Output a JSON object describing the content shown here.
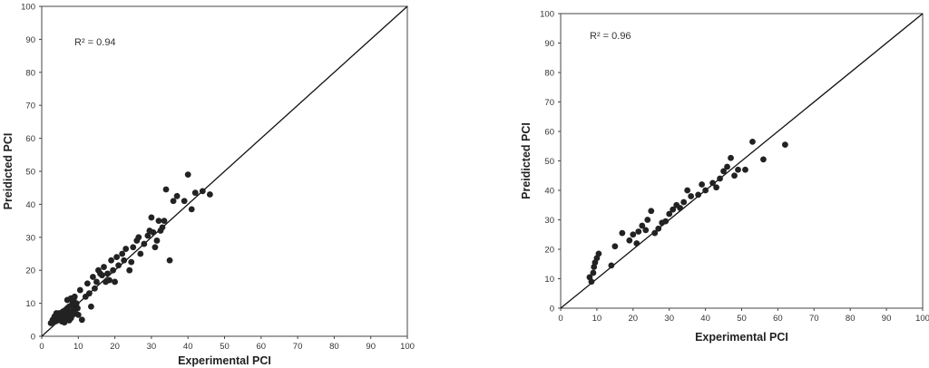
{
  "chart_data": [
    {
      "type": "scatter",
      "title": "",
      "xlabel": "Experimental PCI",
      "ylabel": "Preidicted PCI",
      "xlim": [
        0,
        100
      ],
      "ylim": [
        0,
        100
      ],
      "xticks": [
        0,
        10,
        20,
        30,
        40,
        50,
        60,
        70,
        80,
        90,
        100
      ],
      "yticks": [
        0,
        10,
        20,
        30,
        40,
        50,
        60,
        70,
        80,
        90,
        100
      ],
      "annotation": "R² = 0.94",
      "reference_line": "y = x",
      "grid": false,
      "marker_color": "#222222",
      "series": [
        {
          "points": [
            [
              2.5,
              4
            ],
            [
              3,
              5
            ],
            [
              3.2,
              4.5
            ],
            [
              3.5,
              6
            ],
            [
              3.8,
              5.2
            ],
            [
              4,
              4.6
            ],
            [
              4.2,
              6.5
            ],
            [
              4.5,
              5.5
            ],
            [
              4.8,
              7
            ],
            [
              5,
              5
            ],
            [
              5.2,
              6.2
            ],
            [
              5.5,
              4.5
            ],
            [
              5.8,
              7.5
            ],
            [
              6,
              5.8
            ],
            [
              6.2,
              4.2
            ],
            [
              6.5,
              6.8
            ],
            [
              6.8,
              5.2
            ],
            [
              7,
              8.5
            ],
            [
              7.2,
              6
            ],
            [
              7.5,
              4.8
            ],
            [
              7.8,
              7.2
            ],
            [
              8,
              5.5
            ],
            [
              8.2,
              9.5
            ],
            [
              8.5,
              6.5
            ],
            [
              8.8,
              11.5
            ],
            [
              9,
              8
            ],
            [
              9.2,
              7
            ],
            [
              9.5,
              10
            ],
            [
              9.8,
              8.5
            ],
            [
              10,
              6.5
            ],
            [
              6.5,
              8
            ],
            [
              7,
              11
            ],
            [
              8,
              11.5
            ],
            [
              9,
              12
            ],
            [
              5,
              6.5
            ],
            [
              4,
              7
            ],
            [
              7.5,
              9
            ],
            [
              8.5,
              10.5
            ],
            [
              11,
              5
            ],
            [
              10.5,
              14
            ],
            [
              12,
              12
            ],
            [
              12.5,
              16
            ],
            [
              13,
              13
            ],
            [
              13.5,
              9
            ],
            [
              14,
              18
            ],
            [
              14.5,
              14.5
            ],
            [
              15,
              16.5
            ],
            [
              15.5,
              20
            ],
            [
              16,
              19
            ],
            [
              16.5,
              18.5
            ],
            [
              17,
              21
            ],
            [
              17.5,
              16.5
            ],
            [
              18,
              19
            ],
            [
              18.5,
              17
            ],
            [
              19,
              23
            ],
            [
              19.5,
              20
            ],
            [
              20,
              16.5
            ],
            [
              20.5,
              24
            ],
            [
              21,
              21.5
            ],
            [
              22,
              25
            ],
            [
              22.5,
              23
            ],
            [
              23,
              26.5
            ],
            [
              24,
              20
            ],
            [
              24.5,
              22.5
            ],
            [
              25,
              27
            ],
            [
              26,
              29
            ],
            [
              26.5,
              30
            ],
            [
              27,
              25
            ],
            [
              28,
              28
            ],
            [
              29,
              30.5
            ],
            [
              29.5,
              32
            ],
            [
              30,
              36
            ],
            [
              30.5,
              31.5
            ],
            [
              31,
              27
            ],
            [
              31.5,
              29
            ],
            [
              32,
              35
            ],
            [
              32.5,
              32
            ],
            [
              33,
              33
            ],
            [
              33.5,
              35
            ],
            [
              34,
              44.5
            ],
            [
              35,
              23
            ],
            [
              36,
              41
            ],
            [
              37,
              42.5
            ],
            [
              39,
              41
            ],
            [
              40,
              49
            ],
            [
              41,
              38.5
            ],
            [
              42,
              43.5
            ],
            [
              44,
              44
            ],
            [
              46,
              43
            ]
          ]
        }
      ]
    },
    {
      "type": "scatter",
      "title": "",
      "xlabel": "Experimental PCI",
      "ylabel": "Preidicted PCI",
      "xlim": [
        0,
        100
      ],
      "ylim": [
        0,
        100
      ],
      "xticks": [
        0,
        10,
        20,
        30,
        40,
        50,
        60,
        70,
        80,
        90,
        100
      ],
      "yticks": [
        0,
        10,
        20,
        30,
        40,
        50,
        60,
        70,
        80,
        90,
        100
      ],
      "annotation": "R² = 0.96",
      "reference_line": "y = x",
      "grid": false,
      "marker_color": "#222222",
      "series": [
        {
          "points": [
            [
              8,
              10.5
            ],
            [
              8.5,
              9
            ],
            [
              9,
              12
            ],
            [
              9.2,
              14
            ],
            [
              9.5,
              15.5
            ],
            [
              10,
              17
            ],
            [
              10.5,
              18.5
            ],
            [
              14,
              14.5
            ],
            [
              15,
              21
            ],
            [
              17,
              25.5
            ],
            [
              19,
              23
            ],
            [
              20,
              25
            ],
            [
              21,
              22
            ],
            [
              21.5,
              26
            ],
            [
              22.5,
              28
            ],
            [
              23.5,
              26.5
            ],
            [
              24,
              30
            ],
            [
              25,
              33
            ],
            [
              26,
              25.5
            ],
            [
              27,
              27
            ],
            [
              28,
              29
            ],
            [
              29,
              29.5
            ],
            [
              30,
              32
            ],
            [
              31,
              33.5
            ],
            [
              32,
              35
            ],
            [
              33,
              34
            ],
            [
              34,
              36
            ],
            [
              35,
              40
            ],
            [
              36,
              38
            ],
            [
              38,
              38.5
            ],
            [
              39,
              42
            ],
            [
              40,
              40
            ],
            [
              42,
              42.5
            ],
            [
              43,
              41
            ],
            [
              44,
              44
            ],
            [
              45,
              46.5
            ],
            [
              46,
              48
            ],
            [
              47,
              51
            ],
            [
              48,
              45
            ],
            [
              49,
              47
            ],
            [
              51,
              47
            ],
            [
              53,
              56.5
            ],
            [
              56,
              50.5
            ],
            [
              62,
              55.5
            ]
          ]
        }
      ]
    }
  ]
}
